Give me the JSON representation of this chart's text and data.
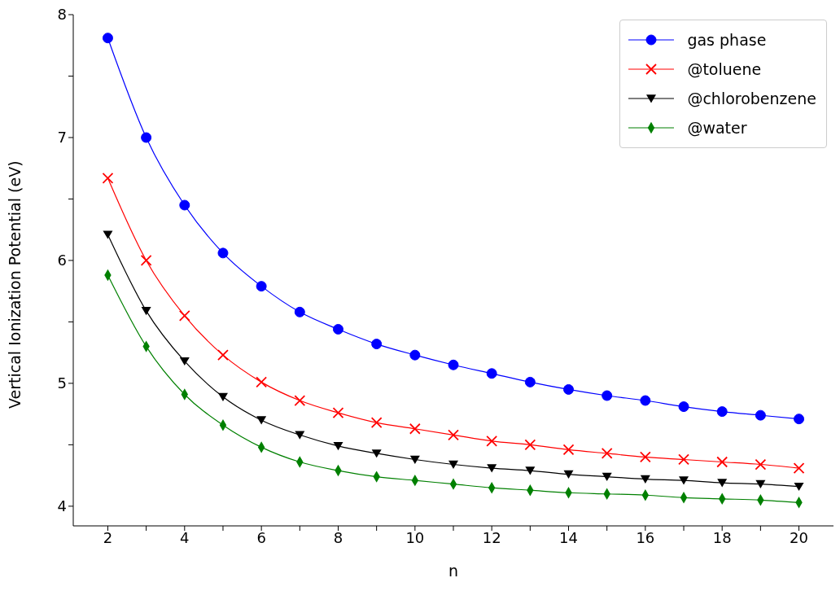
{
  "chart_data": {
    "type": "line",
    "xlabel": "n",
    "ylabel": "Vertical Ionization Potential (eV)",
    "x": [
      2,
      3,
      4,
      5,
      6,
      7,
      8,
      9,
      10,
      11,
      12,
      13,
      14,
      15,
      16,
      17,
      18,
      19,
      20
    ],
    "series": [
      {
        "name": "gas phase",
        "color": "#0000ff",
        "marker": "circle",
        "values": [
          7.81,
          7.0,
          6.45,
          6.06,
          5.79,
          5.58,
          5.44,
          5.32,
          5.23,
          5.15,
          5.08,
          5.01,
          4.95,
          4.9,
          4.86,
          4.81,
          4.77,
          4.74,
          4.71
        ]
      },
      {
        "name": "@toluene",
        "color": "#ff0000",
        "marker": "cross",
        "values": [
          6.67,
          6.0,
          5.55,
          5.23,
          5.01,
          4.86,
          4.76,
          4.68,
          4.63,
          4.58,
          4.53,
          4.5,
          4.46,
          4.43,
          4.4,
          4.38,
          4.36,
          4.34,
          4.31
        ]
      },
      {
        "name": "@chlorobenzene",
        "color": "#000000",
        "marker": "triangle",
        "values": [
          6.21,
          5.59,
          5.18,
          4.89,
          4.7,
          4.58,
          4.49,
          4.43,
          4.38,
          4.34,
          4.31,
          4.29,
          4.26,
          4.24,
          4.22,
          4.21,
          4.19,
          4.18,
          4.16
        ]
      },
      {
        "name": "@water",
        "color": "#008000",
        "marker": "diamond",
        "values": [
          5.88,
          5.3,
          4.91,
          4.66,
          4.48,
          4.36,
          4.29,
          4.24,
          4.21,
          4.18,
          4.15,
          4.13,
          4.11,
          4.1,
          4.09,
          4.07,
          4.06,
          4.05,
          4.03
        ]
      }
    ],
    "xlim": [
      1.1,
      20.9
    ],
    "ylim": [
      3.84,
      8.0
    ],
    "xticks": [
      2,
      {
        "value": 3,
        "label": null
      },
      4,
      {
        "value": 5,
        "label": null
      },
      6,
      {
        "value": 7,
        "label": null
      },
      8,
      {
        "value": 9,
        "label": null
      },
      10,
      {
        "value": 11,
        "label": null
      },
      12,
      {
        "value": 13,
        "label": null
      },
      14,
      {
        "value": 15,
        "label": null
      },
      16,
      {
        "value": 17,
        "label": null
      },
      18,
      {
        "value": 19,
        "label": null
      },
      20
    ],
    "yticks": [
      4,
      {
        "value": 4.5,
        "label": null
      },
      5,
      {
        "value": 5.5,
        "label": null
      },
      6,
      {
        "value": 6.5,
        "label": null
      },
      7,
      {
        "value": 7.5,
        "label": null
      },
      8
    ],
    "grid": false,
    "legend": "top right",
    "line_style": "solid"
  }
}
